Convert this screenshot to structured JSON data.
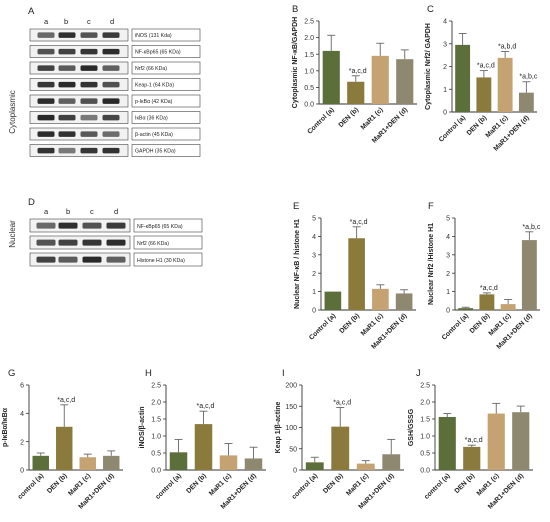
{
  "colors": {
    "control": "#5c6e3a",
    "den": "#8a7a3c",
    "mar1": "#c4a272",
    "mar1den": "#8f8870",
    "error": "#666666",
    "axis": "#333333",
    "blot_band": "#1e1e1e"
  },
  "cytoplasmic_blot": {
    "panel": "A",
    "side_title": "Cytoplasmic",
    "lanes": [
      "a",
      "b",
      "c",
      "d"
    ],
    "proteins": [
      "iNOS (131 Kda)",
      "NF-κBp65 (65 KDa)",
      "Nrf2 (66 KDa)",
      "Keap-1 (64 KDa)",
      "p-IκBα (42 KDa)",
      "IκBα (36 KDa)",
      "β-actin (45 KDa)",
      "GAPDH (35 KDa)"
    ]
  },
  "nuclear_blot": {
    "panel": "D",
    "side_title": "Nuclear",
    "lanes": [
      "a",
      "b",
      "c",
      "d"
    ],
    "proteins": [
      "NF-κBp65 (65 KDa)",
      "Nrf2 (66 KDa)",
      "Histone H1 (30 KDa)"
    ]
  },
  "chart_data": [
    {
      "panel": "B",
      "type": "bar",
      "categories": [
        "Control (a)",
        "DEN (b)",
        "MaR1 (c)",
        "MaR1+DEN (d)"
      ],
      "values": [
        1.6,
        0.67,
        1.45,
        1.35
      ],
      "errors": [
        0.47,
        0.18,
        0.38,
        0.28
      ],
      "annotations": [
        "",
        "*a,c,d",
        "",
        ""
      ],
      "ylabel": "Cytoplasmic NF-κB/GAPDH",
      "ylim": [
        0,
        2.5
      ],
      "yticks": [
        "0.0",
        "0.5",
        "1.0",
        "1.5",
        "2.0",
        "2.5"
      ],
      "grid": false
    },
    {
      "panel": "C",
      "type": "bar",
      "categories": [
        "Control (a)",
        "DEN (b)",
        "MaR1 (c)",
        "MaR1+DEN (d)"
      ],
      "values": [
        2.95,
        1.52,
        2.38,
        0.85
      ],
      "errors": [
        0.5,
        0.3,
        0.28,
        0.48
      ],
      "annotations": [
        "",
        "*a,c,d",
        "*a,b,d",
        "*a,b,c"
      ],
      "ylabel": "Cytoplasmic Nrf2/ GAPDH",
      "ylim": [
        0,
        4
      ],
      "yticks": [
        "0",
        "1",
        "2",
        "3",
        "4"
      ],
      "grid": false
    },
    {
      "panel": "E",
      "type": "bar",
      "categories": [
        "Control (a)",
        "DEN (b)",
        "MaR1 (c)",
        "MaR1+DEN (d)"
      ],
      "values": [
        1.0,
        3.9,
        1.15,
        0.9
      ],
      "errors": [
        0.0,
        0.62,
        0.22,
        0.2
      ],
      "annotations": [
        "",
        "*a,c,d",
        "",
        ""
      ],
      "ylabel": "Nuclear NF-κB / histone H1",
      "ylim": [
        0,
        5
      ],
      "yticks": [
        "0",
        "1",
        "2",
        "3",
        "4",
        "5"
      ],
      "grid": false
    },
    {
      "panel": "F",
      "type": "bar",
      "categories": [
        "Control (a)",
        "DEN (b)",
        "MaR1 (c)",
        "MaR1+DEN (d)"
      ],
      "values": [
        0.1,
        0.85,
        0.32,
        3.8
      ],
      "errors": [
        0.05,
        0.08,
        0.25,
        0.45
      ],
      "annotations": [
        "",
        "*a,c,d",
        "",
        "*a,b,c"
      ],
      "ylabel": "Nuclear Nrf2 /Histone H1",
      "ylim": [
        0,
        5
      ],
      "yticks": [
        "0",
        "1",
        "2",
        "3",
        "4",
        "5"
      ],
      "grid": false
    },
    {
      "panel": "G",
      "type": "bar",
      "categories": [
        "control (a)",
        "DEN (b)",
        "MaR1 (c)",
        "MaR1+DEN (d)"
      ],
      "values": [
        1.0,
        3.05,
        0.9,
        1.0
      ],
      "errors": [
        0.2,
        1.55,
        0.22,
        0.35
      ],
      "annotations": [
        "",
        "*a,c,d",
        "",
        ""
      ],
      "ylabel": "p-IκBα/IκBα",
      "ylim": [
        0,
        6
      ],
      "yticks": [
        "0",
        "2",
        "4",
        "6"
      ],
      "grid": false
    },
    {
      "panel": "H",
      "type": "bar",
      "categories": [
        "control (a)",
        "DEN (b)",
        "MaR1 (c)",
        "MaR1+DEN (d)"
      ],
      "values": [
        0.52,
        1.35,
        0.43,
        0.34
      ],
      "errors": [
        0.38,
        0.38,
        0.35,
        0.33
      ],
      "annotations": [
        "",
        "*a,c,d",
        "",
        ""
      ],
      "ylabel": "iNOS/β-actin",
      "ylim": [
        0,
        2.5
      ],
      "yticks": [
        "0.0",
        "0.5",
        "1.0",
        "1.5",
        "2.0",
        "2.5"
      ],
      "grid": false
    },
    {
      "panel": "I",
      "type": "bar",
      "categories": [
        "control (a)",
        "DEN (b)",
        "MaR1 (c)",
        "MaR1+DEN (d)"
      ],
      "values": [
        18,
        102,
        15,
        37
      ],
      "errors": [
        12,
        45,
        7,
        35
      ],
      "annotations": [
        "",
        "*a,c,d",
        "",
        ""
      ],
      "ylabel": "Keap 1/β-actine",
      "ylim": [
        0,
        200
      ],
      "yticks": [
        "0",
        "50",
        "100",
        "150",
        "200"
      ],
      "grid": false
    },
    {
      "panel": "J",
      "type": "bar",
      "categories": [
        "control (a)",
        "DEN (b)",
        "MaR1 (c)",
        "MaR1+DEN (d)"
      ],
      "values": [
        1.56,
        0.68,
        1.66,
        1.7
      ],
      "errors": [
        0.1,
        0.05,
        0.3,
        0.18
      ],
      "annotations": [
        "",
        "*a,c,d",
        "",
        ""
      ],
      "ylabel": "GSH/GSSG",
      "ylim": [
        0,
        2.5
      ],
      "yticks": [
        "0.0",
        "0.5",
        "1.0",
        "1.5",
        "2.0",
        "2.5"
      ],
      "grid": false
    }
  ]
}
